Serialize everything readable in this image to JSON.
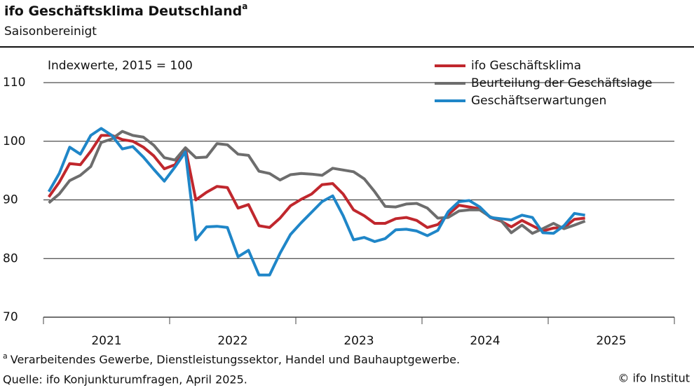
{
  "chart_data": {
    "type": "line",
    "title": "ifo Geschäftsklima Deutschland",
    "title_note": "a",
    "subtitle": "Saisonbereinigt",
    "y_label": "Indexwerte, 2015 = 100",
    "footnote_mark": "a",
    "footnote": "Verarbeitendes Gewerbe, Dienstleistungssektor, Handel und Bauhauptgewerbe.",
    "source": "Quelle: ifo Konjunkturumfragen, April 2025.",
    "copyright": "© ifo Institut",
    "legend": "top-right",
    "grid": true,
    "ylim": [
      70,
      112
    ],
    "yticks": [
      70,
      80,
      90,
      100,
      110
    ],
    "xlim": [
      2021,
      2026
    ],
    "xticks": [
      {
        "value": 2021.5,
        "label": "2021"
      },
      {
        "value": 2022.5,
        "label": "2022"
      },
      {
        "value": 2023.5,
        "label": "2023"
      },
      {
        "value": 2024.5,
        "label": "2024"
      },
      {
        "value": 2025.5,
        "label": "2025"
      }
    ],
    "xminor_ticks": [
      2021,
      2022,
      2023,
      2024,
      2025,
      2026
    ],
    "x": [
      2021.042,
      2021.125,
      2021.208,
      2021.292,
      2021.375,
      2021.458,
      2021.542,
      2021.625,
      2021.708,
      2021.792,
      2021.875,
      2021.958,
      2022.042,
      2022.125,
      2022.208,
      2022.292,
      2022.375,
      2022.458,
      2022.542,
      2022.625,
      2022.708,
      2022.792,
      2022.875,
      2022.958,
      2023.042,
      2023.125,
      2023.208,
      2023.292,
      2023.375,
      2023.458,
      2023.542,
      2023.625,
      2023.708,
      2023.792,
      2023.875,
      2023.958,
      2024.042,
      2024.125,
      2024.208,
      2024.292,
      2024.375,
      2024.458,
      2024.542,
      2024.625,
      2024.708,
      2024.792,
      2024.875,
      2024.958,
      2025.042,
      2025.125,
      2025.208,
      2025.292
    ],
    "series": [
      {
        "name": "ifo Geschäftsklima",
        "color": "#c0272d",
        "values": [
          90.5,
          93,
          96.2,
          96,
          98.3,
          101,
          101,
          100.3,
          100,
          99,
          97.5,
          95.3,
          96,
          98.8,
          90,
          91.3,
          92.3,
          92.1,
          88.6,
          89.2,
          85.6,
          85.3,
          86.9,
          89,
          90.1,
          91,
          92.6,
          92.8,
          91,
          88.3,
          87.3,
          86,
          86,
          86.8,
          87,
          86.5,
          85.3,
          85.8,
          87.5,
          89.1,
          88.8,
          88.5,
          87,
          86.4,
          85.4,
          86.5,
          85.6,
          84.7,
          85.2,
          85.3,
          86.7,
          86.9
        ]
      },
      {
        "name": "Beurteilung der Geschäftslage",
        "color": "#6d6d6d",
        "values": [
          89.5,
          91,
          93.3,
          94.2,
          95.7,
          99.8,
          100.4,
          101.7,
          101,
          100.7,
          99.3,
          97.2,
          96.8,
          98.9,
          97.2,
          97.3,
          99.6,
          99.4,
          97.8,
          97.6,
          94.9,
          94.5,
          93.4,
          94.3,
          94.5,
          94.4,
          94.2,
          95.4,
          95.1,
          94.8,
          93.6,
          91.4,
          88.9,
          88.8,
          89.3,
          89.4,
          88.6,
          86.9,
          87,
          88.1,
          88.3,
          88.3,
          87.1,
          86.5,
          84.4,
          85.7,
          84.3,
          85.1,
          86,
          85.1,
          85.7,
          86.4
        ]
      },
      {
        "name": "Geschäftserwartungen",
        "color": "#1f86c8",
        "values": [
          91.4,
          94.5,
          99,
          97.8,
          101,
          102.2,
          101,
          98.7,
          99.1,
          97.3,
          95.2,
          93.2,
          95.6,
          98.2,
          83.2,
          85.4,
          85.5,
          85.3,
          80.3,
          81.4,
          77.2,
          77.2,
          80.9,
          84.1,
          86.1,
          87.9,
          89.7,
          90.7,
          87.3,
          83.2,
          83.6,
          82.9,
          83.4,
          84.9,
          85,
          84.7,
          83.9,
          84.8,
          88,
          89.7,
          89.9,
          88.8,
          87,
          86.8,
          86.6,
          87.4,
          87,
          84.4,
          84.3,
          85.6,
          87.7,
          87.4
        ]
      }
    ]
  }
}
